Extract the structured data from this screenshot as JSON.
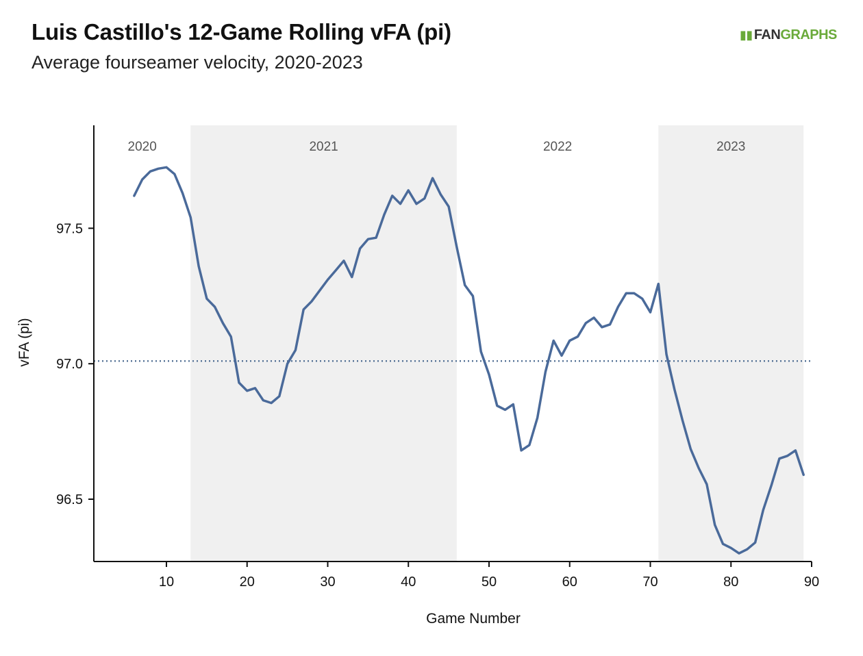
{
  "chart_data": {
    "type": "line",
    "title": "Luis Castillo's 12-Game Rolling vFA (pi)",
    "subtitle": "Average fourseamer velocity, 2020-2023",
    "brand": {
      "fan": "FAN",
      "graphs": "GRAPHS",
      "mark_icon": "bars-icon",
      "color_green": "#6aaa3a",
      "color_dark": "#333333"
    },
    "xlabel": "Game Number",
    "ylabel": "vFA (pi)",
    "xlim": [
      1,
      90
    ],
    "ylim": [
      96.27,
      97.88
    ],
    "xticks": [
      10,
      20,
      30,
      40,
      50,
      60,
      70,
      80,
      90
    ],
    "yticks": [
      96.5,
      97.0,
      97.5
    ],
    "ytick_labels": [
      "96.5",
      "97.0",
      "97.5"
    ],
    "reference_line": {
      "y": 97.01,
      "style": "dotted",
      "color": "#4a6a90"
    },
    "seasons": [
      {
        "label": "2020",
        "start": 1,
        "end": 13,
        "shaded": false
      },
      {
        "label": "2021",
        "start": 13,
        "end": 46,
        "shaded": true
      },
      {
        "label": "2022",
        "start": 46,
        "end": 71,
        "shaded": false
      },
      {
        "label": "2023",
        "start": 71,
        "end": 89,
        "shaded": true
      }
    ],
    "shade_color": "#f0f0f0",
    "line_color": "#4a6a9a",
    "series": [
      {
        "x": [
          6,
          7,
          8,
          9,
          10,
          11,
          12,
          13,
          14,
          15,
          16,
          17,
          18,
          19,
          20,
          21,
          22,
          23,
          24,
          25,
          26,
          27,
          28,
          29,
          30,
          31,
          32,
          33,
          34,
          35,
          36,
          37,
          38,
          39,
          40,
          41,
          42,
          43,
          44,
          45,
          46,
          47,
          48,
          49,
          50,
          51,
          52,
          53,
          54,
          55,
          56,
          57,
          58,
          59,
          60,
          61,
          62,
          63,
          64,
          65,
          66,
          67,
          68,
          69,
          70,
          71,
          72,
          73,
          74,
          75,
          76,
          77,
          78,
          79,
          80,
          81,
          82,
          83,
          84,
          85,
          86,
          87,
          88,
          89
        ],
        "values": [
          97.62,
          97.68,
          97.71,
          97.72,
          97.725,
          97.7,
          97.63,
          97.54,
          97.36,
          97.24,
          97.21,
          97.15,
          97.1,
          96.93,
          96.9,
          96.91,
          96.865,
          96.855,
          96.88,
          97.0,
          97.05,
          97.2,
          97.23,
          97.27,
          97.31,
          97.345,
          97.38,
          97.32,
          97.425,
          97.46,
          97.465,
          97.55,
          97.62,
          97.59,
          97.64,
          97.59,
          97.61,
          97.685,
          97.625,
          97.58,
          97.43,
          97.29,
          97.25,
          97.045,
          96.96,
          96.845,
          96.83,
          96.85,
          96.68,
          96.7,
          96.8,
          96.97,
          97.085,
          97.03,
          97.085,
          97.1,
          97.15,
          97.17,
          97.135,
          97.145,
          97.21,
          97.26,
          97.26,
          97.24,
          97.19,
          97.295,
          97.035,
          96.905,
          96.79,
          96.685,
          96.615,
          96.555,
          96.405,
          96.335,
          96.32,
          96.3,
          96.315,
          96.34,
          96.46,
          96.55,
          96.65,
          96.66,
          96.68,
          96.59
        ]
      }
    ]
  }
}
